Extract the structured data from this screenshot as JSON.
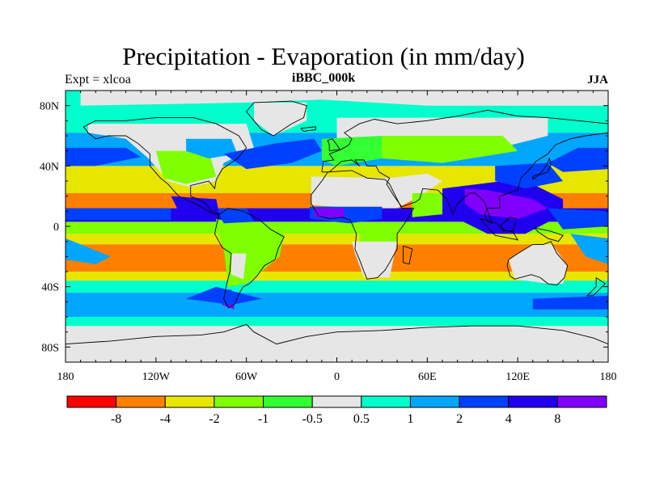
{
  "title": "Precipitation - Evaporation (in mm/day)",
  "left_label": "Expt = xlcoa",
  "center_label": "iBBC_000k",
  "right_label": "JJA",
  "lat_ticks": [
    {
      "label": "80N",
      "lat": 80
    },
    {
      "label": "40N",
      "lat": 40
    },
    {
      "label": "0",
      "lat": 0
    },
    {
      "label": "40S",
      "lat": -40
    },
    {
      "label": "80S",
      "lat": -80
    }
  ],
  "lon_ticks": [
    {
      "label": "180",
      "lon": -180
    },
    {
      "label": "120W",
      "lon": -120
    },
    {
      "label": "60W",
      "lon": -60
    },
    {
      "label": "0",
      "lon": 0
    },
    {
      "label": "60E",
      "lon": 60
    },
    {
      "label": "120E",
      "lon": 120
    },
    {
      "label": "180",
      "lon": 180
    }
  ],
  "colorbar": {
    "colors": [
      "#ff0000",
      "#ff8000",
      "#e6e600",
      "#80ff00",
      "#33ff33",
      "#e6e6e6",
      "#00ffcc",
      "#00a6ff",
      "#0040ff",
      "#2000ee",
      "#8000ff"
    ],
    "labels": [
      "-8",
      "-4",
      "-2",
      "-1",
      "-0.5",
      "0.5",
      "1",
      "2",
      "4",
      "8"
    ]
  },
  "map_colors": {
    "neutral": "#e6e6e6",
    "weak_wet": "#00ffcc",
    "wet": "#00a6ff",
    "very_wet": "#0040ff",
    "extreme_wet": "#2000ee",
    "max_wet": "#8000ff",
    "dry": "#ff8000",
    "moderate_dry": "#e6e600",
    "light_dry": "#80ff00",
    "lighter_dry": "#33ff33",
    "coastline": "#000000"
  }
}
